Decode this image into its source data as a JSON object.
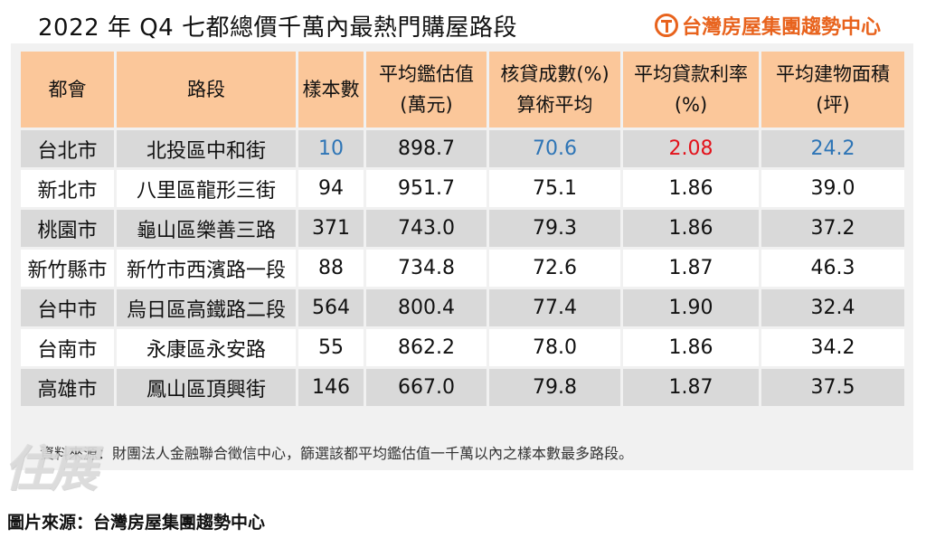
{
  "title": "2022 年 Q4 七都總價千萬內最熱門購屋路段",
  "brand": {
    "name": "台灣房屋集團趨勢中心",
    "icon": "brand-logo-icon",
    "color": "#e8631d"
  },
  "table": {
    "headers": [
      {
        "line1": "都會",
        "line2": ""
      },
      {
        "line1": "路段",
        "line2": ""
      },
      {
        "line1": "樣本數",
        "line2": ""
      },
      {
        "line1": "平均鑑估值",
        "line2": "(萬元)"
      },
      {
        "line1": "核貸成數(%)",
        "line2": "算術平均"
      },
      {
        "line1": "平均貸款利率",
        "line2": "(%)"
      },
      {
        "line1": "平均建物面積",
        "line2": "(坪)"
      }
    ],
    "rows": [
      [
        "台北市",
        "北投區中和街",
        "10",
        "898.7",
        "70.6",
        "2.08",
        "24.2"
      ],
      [
        "新北市",
        "八里區龍形三街",
        "94",
        "951.7",
        "75.1",
        "1.86",
        "39.0"
      ],
      [
        "桃園市",
        "龜山區樂善三路",
        "371",
        "743.0",
        "79.3",
        "1.86",
        "37.2"
      ],
      [
        "新竹縣市",
        "新竹市西濱路一段",
        "88",
        "734.8",
        "72.6",
        "1.87",
        "46.3"
      ],
      [
        "台中市",
        "烏日區高鐵路二段",
        "564",
        "800.4",
        "77.4",
        "1.90",
        "32.4"
      ],
      [
        "台南市",
        "永康區永安路",
        "55",
        "862.2",
        "78.0",
        "1.86",
        "34.2"
      ],
      [
        "高雄市",
        "鳳山區頂興街",
        "146",
        "667.0",
        "79.8",
        "1.87",
        "37.5"
      ]
    ],
    "colors": {
      "header": "#fbc79a",
      "stripe": "#d9d9d9",
      "highlight_blue": "#2e75b6",
      "highlight_red": "#e3121b"
    }
  },
  "note": "資料來源：財團法人金融聯合徵信中心，篩選該都平均鑑估值一千萬以內之樣本數最多路段。",
  "watermark": "住展",
  "source": "圖片來源：台灣房屋集團趨勢中心"
}
